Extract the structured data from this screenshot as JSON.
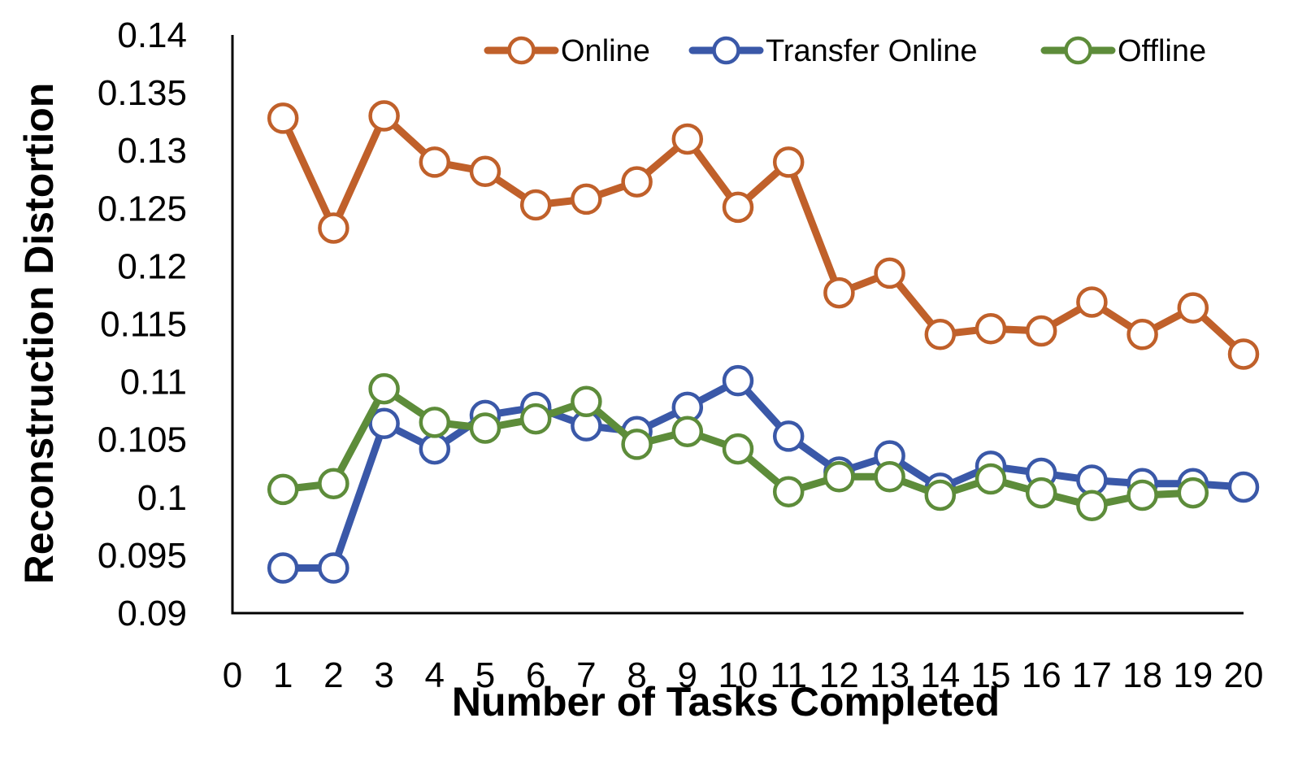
{
  "chart_data": {
    "type": "line",
    "title": "",
    "xlabel": "Number of Tasks Completed",
    "ylabel": "Reconstruction Distortion",
    "xlim": [
      0,
      20
    ],
    "ylim": [
      0.09,
      0.14
    ],
    "x_ticks": [
      "0",
      "1",
      "2",
      "3",
      "4",
      "5",
      "6",
      "7",
      "8",
      "9",
      "10",
      "11",
      "12",
      "13",
      "14",
      "15",
      "16",
      "17",
      "18",
      "19",
      "20"
    ],
    "y_ticks": [
      "0.09",
      "0.095",
      "0.1",
      "0.105",
      "0.11",
      "0.115",
      "0.12",
      "0.125",
      "0.13",
      "0.135",
      "0.14"
    ],
    "grid": false,
    "legend_position": "top-right",
    "series": [
      {
        "name": "Online",
        "color": "#c0602a",
        "x": [
          1,
          2,
          3,
          4,
          5,
          6,
          7,
          8,
          9,
          10,
          11,
          12,
          13,
          14,
          15,
          16,
          17,
          18,
          19,
          20
        ],
        "values": [
          0.1328,
          0.1233,
          0.133,
          0.129,
          0.1282,
          0.1253,
          0.1258,
          0.1273,
          0.131,
          0.1251,
          0.129,
          0.1177,
          0.1194,
          0.1141,
          0.1146,
          0.1144,
          0.1169,
          0.1141,
          0.1164,
          0.1124
        ]
      },
      {
        "name": "Transfer Online",
        "color": "#3a58a8",
        "x": [
          1,
          2,
          3,
          4,
          5,
          6,
          7,
          8,
          9,
          10,
          11,
          12,
          13,
          14,
          15,
          16,
          17,
          18,
          19,
          20
        ],
        "values": [
          0.0939,
          0.0939,
          0.1064,
          0.1042,
          0.1071,
          0.1078,
          0.1062,
          0.1057,
          0.1078,
          0.1101,
          0.1053,
          0.1022,
          0.1036,
          0.1008,
          0.1027,
          0.1021,
          0.1015,
          0.1012,
          0.1012,
          0.1009
        ]
      },
      {
        "name": "Offline",
        "color": "#5d8c3a",
        "x": [
          1,
          2,
          3,
          4,
          5,
          6,
          7,
          8,
          9,
          10,
          11,
          12,
          13,
          14,
          15,
          16,
          17,
          18,
          19
        ],
        "values": [
          0.1007,
          0.1012,
          0.1094,
          0.1065,
          0.106,
          0.1068,
          0.1083,
          0.1046,
          0.1057,
          0.1042,
          0.1005,
          0.1018,
          0.1018,
          0.1002,
          0.1016,
          0.1004,
          0.0993,
          0.1002,
          0.1004
        ]
      }
    ]
  }
}
